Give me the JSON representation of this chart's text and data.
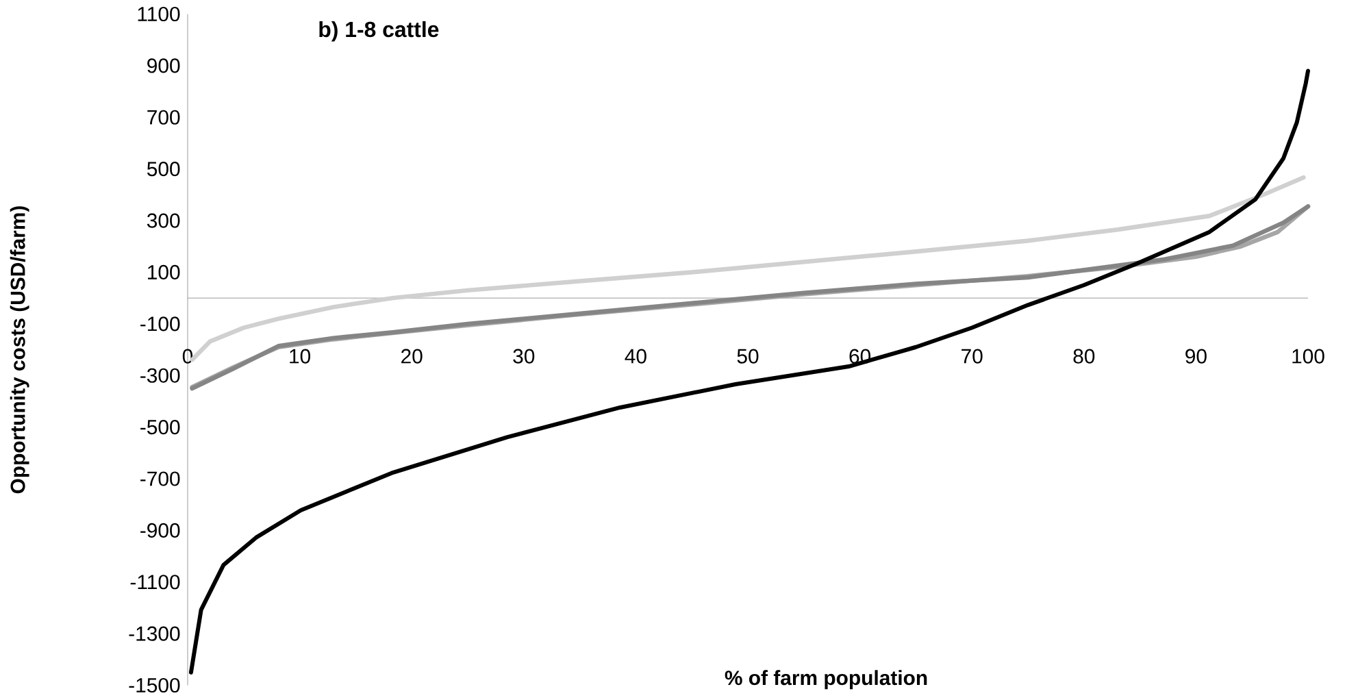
{
  "chart_data": {
    "type": "line",
    "title": "b) 1-8 cattle",
    "xlabel": "% of farm population",
    "ylabel": "Opportunity  costs (USD/farm)",
    "xlim": [
      0,
      100
    ],
    "ylim": [
      -1500,
      1100
    ],
    "xticks": [
      0,
      10,
      20,
      30,
      40,
      50,
      60,
      70,
      80,
      90,
      100
    ],
    "yticks": [
      -1500,
      -1300,
      -1100,
      -900,
      -700,
      -500,
      -300,
      -100,
      100,
      300,
      500,
      700,
      900,
      1100
    ],
    "line_style": "solid",
    "series": [
      {
        "color": "#d0d0d0",
        "x": [
          0.4,
          2,
          5,
          8.1,
          13,
          18.3,
          25,
          34.6,
          45,
          55,
          65,
          75,
          83,
          91.2,
          96,
          99.6
        ],
        "values": [
          -239,
          -168,
          -115,
          -80,
          -35,
          0,
          30,
          64,
          100,
          140,
          180,
          222,
          265,
          318,
          400,
          467
        ]
      },
      {
        "color": "#a6a6a6",
        "x": [
          0.4,
          4,
          8.1,
          13,
          18.3,
          25,
          34.6,
          45,
          55,
          65,
          75,
          83,
          90,
          94,
          97.3,
          100
        ],
        "values": [
          -345,
          -270,
          -190,
          -160,
          -135,
          -105,
          -65,
          -25,
          15,
          50,
          85,
          120,
          160,
          200,
          256,
          355
        ]
      },
      {
        "color": "#858585",
        "x": [
          0.4,
          4,
          8.1,
          13,
          18.3,
          25,
          34.6,
          45,
          55,
          65,
          75,
          87.2,
          93.3,
          97.8,
          100
        ],
        "values": [
          -350,
          -275,
          -186,
          -155,
          -133,
          -100,
          -62,
          -20,
          20,
          55,
          80,
          150,
          203,
          292,
          355
        ]
      },
      {
        "color": "#000000",
        "x": [
          0.3,
          1.2,
          3.2,
          6.1,
          10.1,
          18.2,
          28.5,
          38.6,
          48.9,
          59,
          65,
          70,
          75,
          80,
          84.7,
          91.2,
          95.3,
          97.8,
          99,
          99.8,
          100
        ],
        "values": [
          -1450,
          -1208,
          -1034,
          -928,
          -822,
          -678,
          -539,
          -424,
          -334,
          -265,
          -190,
          -115,
          -27,
          50,
          133,
          256,
          382,
          541,
          680,
          832,
          880
        ]
      }
    ]
  }
}
